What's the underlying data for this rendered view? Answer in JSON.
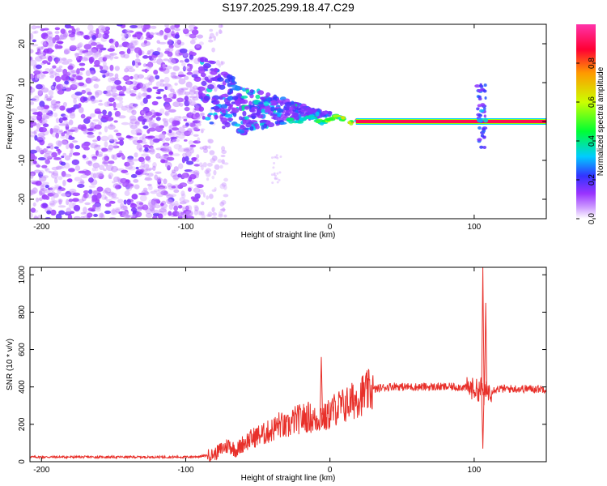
{
  "chart_data": [
    {
      "type": "heatmap",
      "title": "S197.2025.299.18.47.C29",
      "xlabel": "Height of straight line (km)",
      "ylabel": "Frequency (Hz)",
      "xlim": [
        -208,
        150
      ],
      "ylim": [
        -25,
        25
      ],
      "xticks": [
        -200,
        -100,
        0,
        100
      ],
      "xtick_labels": [
        "-200",
        "-100",
        "0",
        "100"
      ],
      "yticks": [
        -20,
        -10,
        0,
        10,
        20
      ],
      "ytick_labels": [
        "-20",
        "-10",
        "0",
        "10",
        "20"
      ],
      "colorbar": {
        "label": "Normalized spectral amplitude",
        "range": [
          0,
          1
        ],
        "ticks": [
          0.0,
          0.2,
          0.4,
          0.6,
          0.8
        ],
        "tick_labels": [
          "0.0",
          "0.2",
          "0.4",
          "0.6",
          "0.8"
        ],
        "colormap": [
          "#ffffff",
          "#9933ff",
          "#3333ff",
          "#00ccff",
          "#00ff33",
          "#ccff00",
          "#ff6600",
          "#ff0033",
          "#ff33aa"
        ]
      },
      "regions": [
        {
          "name": "noise",
          "x_range": [
            -208,
            -90
          ],
          "f_range": [
            -25,
            25
          ],
          "amplitude": 0.12
        },
        {
          "name": "transition",
          "x_range": [
            -90,
            -35
          ],
          "f_range": [
            -10,
            12
          ],
          "amplitude": 0.3
        },
        {
          "name": "carrier",
          "x_range": [
            0,
            150
          ],
          "frequency": 0,
          "amplitude": 0.95
        },
        {
          "name": "spike",
          "x": 105,
          "f_range": [
            -7,
            10
          ],
          "amplitude": 0.3
        }
      ]
    },
    {
      "type": "line",
      "xlabel": "Height of straight line (km)",
      "ylabel": "SNR (10 * v/v)",
      "xlim": [
        -208,
        150
      ],
      "ylim": [
        0,
        1040
      ],
      "xticks": [
        -200,
        -100,
        0,
        100
      ],
      "xtick_labels": [
        "-200",
        "-100",
        "0",
        "100"
      ],
      "yticks": [
        0,
        200,
        400,
        600,
        800,
        1000
      ],
      "ytick_labels": [
        "0",
        "200",
        "400",
        "600",
        "800",
        "1000"
      ],
      "series": [
        {
          "name": "SNR",
          "color": "#e8302a",
          "x": [
            -208,
            -180,
            -150,
            -120,
            -100,
            -90,
            -80,
            -75,
            -70,
            -65,
            -60,
            -55,
            -50,
            -45,
            -40,
            -35,
            -30,
            -25,
            -20,
            -15,
            -10,
            -6,
            -3,
            0,
            5,
            10,
            15,
            20,
            25,
            30,
            35,
            40,
            45,
            50,
            60,
            70,
            80,
            90,
            95,
            100,
            103,
            105,
            107,
            109,
            112,
            115,
            120,
            130,
            140,
            150
          ],
          "values": [
            25,
            25,
            25,
            25,
            25,
            28,
            40,
            70,
            90,
            60,
            100,
            120,
            140,
            150,
            170,
            200,
            180,
            220,
            230,
            240,
            220,
            250,
            230,
            260,
            290,
            300,
            320,
            350,
            370,
            385,
            395,
            400,
            405,
            400,
            400,
            400,
            400,
            400,
            395,
            390,
            380,
            400,
            350,
            380,
            380,
            390,
            390,
            390,
            390,
            390
          ]
        }
      ],
      "annotations": [
        {
          "x": -6,
          "y": 560,
          "text": ""
        },
        {
          "x": 106,
          "y": 1040,
          "text": ""
        },
        {
          "x": 108,
          "y": 850,
          "text": ""
        },
        {
          "x": 106,
          "y": 70,
          "text": ""
        }
      ]
    }
  ]
}
